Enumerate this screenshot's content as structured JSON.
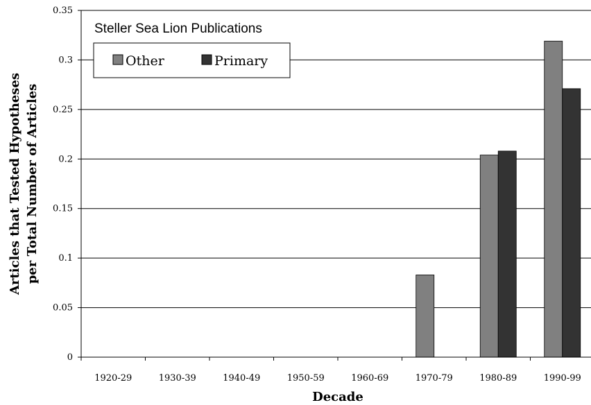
{
  "chart_data": {
    "type": "bar",
    "title": "Steller Sea Lion Publications",
    "xlabel": "Decade",
    "ylabel": [
      "Articles that Tested Hypotheses",
      "per Total Number of Articles"
    ],
    "categories": [
      "1920-29",
      "1930-39",
      "1940-49",
      "1950-59",
      "1960-69",
      "1970-79",
      "1980-89",
      "1990-99"
    ],
    "series": [
      {
        "name": "Other",
        "color": "#808080",
        "values": [
          0,
          0,
          0,
          0,
          0,
          0.083,
          0.204,
          0.319
        ]
      },
      {
        "name": "Primary",
        "color": "#333333",
        "values": [
          0,
          0,
          0,
          0,
          0,
          0,
          0.208,
          0.271
        ]
      }
    ],
    "ylim": [
      0,
      0.35
    ],
    "yticks": [
      "0",
      "0.05",
      "0.1",
      "0.15",
      "0.2",
      "0.25",
      "0.3",
      "0.35"
    ],
    "grid": true,
    "legend_position": "top-left"
  }
}
